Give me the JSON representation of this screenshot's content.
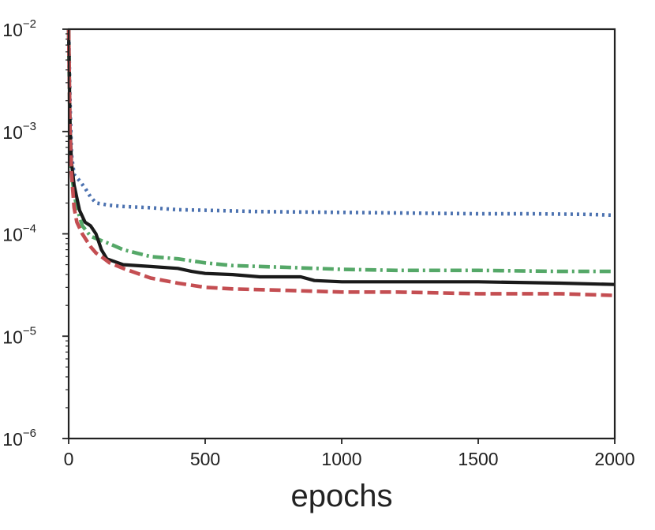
{
  "chart_data": {
    "type": "line",
    "title": "",
    "xlabel": "epochs",
    "ylabel": "",
    "xlim": [
      0,
      2000
    ],
    "ylim": [
      1e-06,
      0.01
    ],
    "yscale": "log",
    "grid": false,
    "legend": "none",
    "x_ticks": [
      {
        "value": 0,
        "label": "0"
      },
      {
        "value": 500,
        "label": "500"
      },
      {
        "value": 1000,
        "label": "1000"
      },
      {
        "value": 1500,
        "label": "1500"
      },
      {
        "value": 2000,
        "label": "2000"
      }
    ],
    "y_ticks": [
      {
        "value": 1e-06,
        "base": "10",
        "exp": "−6"
      },
      {
        "value": 1e-05,
        "base": "10",
        "exp": "−5"
      },
      {
        "value": 0.0001,
        "base": "10",
        "exp": "−4"
      },
      {
        "value": 0.001,
        "base": "10",
        "exp": "−3"
      },
      {
        "value": 0.01,
        "base": "10",
        "exp": "−2"
      }
    ],
    "series": [
      {
        "color": "#4c72b0",
        "style": "dotted",
        "x": [
          0,
          5,
          10,
          20,
          40,
          60,
          80,
          100,
          150,
          200,
          300,
          400,
          500,
          700,
          1000,
          1200,
          1400,
          1500,
          1700,
          1900,
          2000
        ],
        "y": [
          0.01,
          0.002,
          0.0006,
          0.00038,
          0.00033,
          0.00028,
          0.00023,
          0.0002,
          0.00019,
          0.000185,
          0.00018,
          0.000172,
          0.00017,
          0.000165,
          0.000162,
          0.00016,
          0.000158,
          0.000157,
          0.000157,
          0.000155,
          0.000152
        ]
      },
      {
        "color": "#55a868",
        "style": "dashdot",
        "x": [
          0,
          5,
          10,
          20,
          30,
          50,
          80,
          100,
          150,
          200,
          300,
          400,
          500,
          600,
          800,
          1000,
          1200,
          1500,
          1800,
          2000
        ],
        "y": [
          0.01,
          0.001,
          0.0004,
          0.00025,
          0.00018,
          0.00012,
          9.5e-05,
          9e-05,
          8e-05,
          7e-05,
          6e-05,
          5.7e-05,
          5.2e-05,
          4.9e-05,
          4.7e-05,
          4.5e-05,
          4.4e-05,
          4.4e-05,
          4.3e-05,
          4.3e-05
        ]
      },
      {
        "color": "#1a1a1a",
        "style": "solid",
        "x": [
          0,
          5,
          10,
          20,
          40,
          60,
          80,
          100,
          120,
          140,
          200,
          300,
          400,
          450,
          500,
          600,
          700,
          850,
          900,
          1000,
          1200,
          1500,
          1800,
          2000
        ],
        "y": [
          0.01,
          0.0012,
          0.0005,
          0.0003,
          0.00017,
          0.00013,
          0.00012,
          0.0001,
          7e-05,
          5.7e-05,
          5e-05,
          4.8e-05,
          4.6e-05,
          4.3e-05,
          4.1e-05,
          4e-05,
          3.8e-05,
          3.8e-05,
          3.5e-05,
          3.4e-05,
          3.4e-05,
          3.4e-05,
          3.3e-05,
          3.2e-05
        ]
      },
      {
        "color": "#c44e52",
        "style": "dashed",
        "x": [
          0,
          5,
          10,
          20,
          30,
          50,
          80,
          100,
          120,
          150,
          200,
          300,
          400,
          500,
          600,
          800,
          1000,
          1200,
          1500,
          1800,
          2000
        ],
        "y": [
          0.01,
          0.001,
          0.0004,
          0.00018,
          0.00013,
          0.0001,
          7.5e-05,
          6.5e-05,
          6e-05,
          5.2e-05,
          4.6e-05,
          3.7e-05,
          3.3e-05,
          3e-05,
          2.9e-05,
          2.8e-05,
          2.7e-05,
          2.7e-05,
          2.6e-05,
          2.6e-05,
          2.5e-05
        ]
      }
    ]
  }
}
